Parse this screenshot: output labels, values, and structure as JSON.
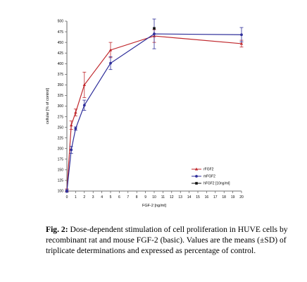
{
  "chart_data": {
    "type": "line",
    "title": "",
    "xlabel": "FGF-2 [ng/ml]",
    "ylabel": "cellular [% of control]",
    "xlim": [
      0,
      20
    ],
    "ylim": [
      100,
      500
    ],
    "x_ticks": [
      "0",
      "1",
      "2",
      "3",
      "4",
      "5",
      "6",
      "7",
      "8",
      "9",
      "10",
      "11",
      "12",
      "13",
      "14",
      "15",
      "16",
      "17",
      "18",
      "19",
      "20"
    ],
    "y_ticks": [
      "100",
      "125",
      "150",
      "175",
      "200",
      "225",
      "250",
      "275",
      "300",
      "325",
      "350",
      "375",
      "400",
      "425",
      "450",
      "475",
      "500"
    ],
    "legend_position": "lower-right",
    "series": [
      {
        "name": "rFGF2",
        "color": "#c0282d",
        "marker": "triangle",
        "x": [
          0,
          0.5,
          1,
          2,
          5,
          10,
          20
        ],
        "y": [
          102,
          255,
          285,
          350,
          432,
          465,
          447
        ],
        "err": [
          3,
          10,
          8,
          30,
          18,
          15,
          8
        ]
      },
      {
        "name": "mFGF2",
        "color": "#2e2e9a",
        "marker": "circle",
        "x": [
          0,
          0.5,
          1,
          2,
          5,
          10,
          20
        ],
        "y": [
          100,
          197,
          247,
          302,
          401,
          470,
          468
        ],
        "err": [
          3,
          8,
          4,
          12,
          15,
          35,
          17
        ]
      },
      {
        "name": "hFGF2 [10ng/ml]",
        "color": "#111111",
        "marker": "square",
        "x": [
          10
        ],
        "y": [
          483
        ],
        "err": [
          0
        ]
      }
    ]
  },
  "caption": {
    "label": "Fig. 2:",
    "text": "Dose-dependent stimulation of cell proliferation in HUVE cells by recombinant rat and mouse FGF-2 (basic). Values are the means (±SD) of triplicate determinations and expressed as percentage of control."
  }
}
